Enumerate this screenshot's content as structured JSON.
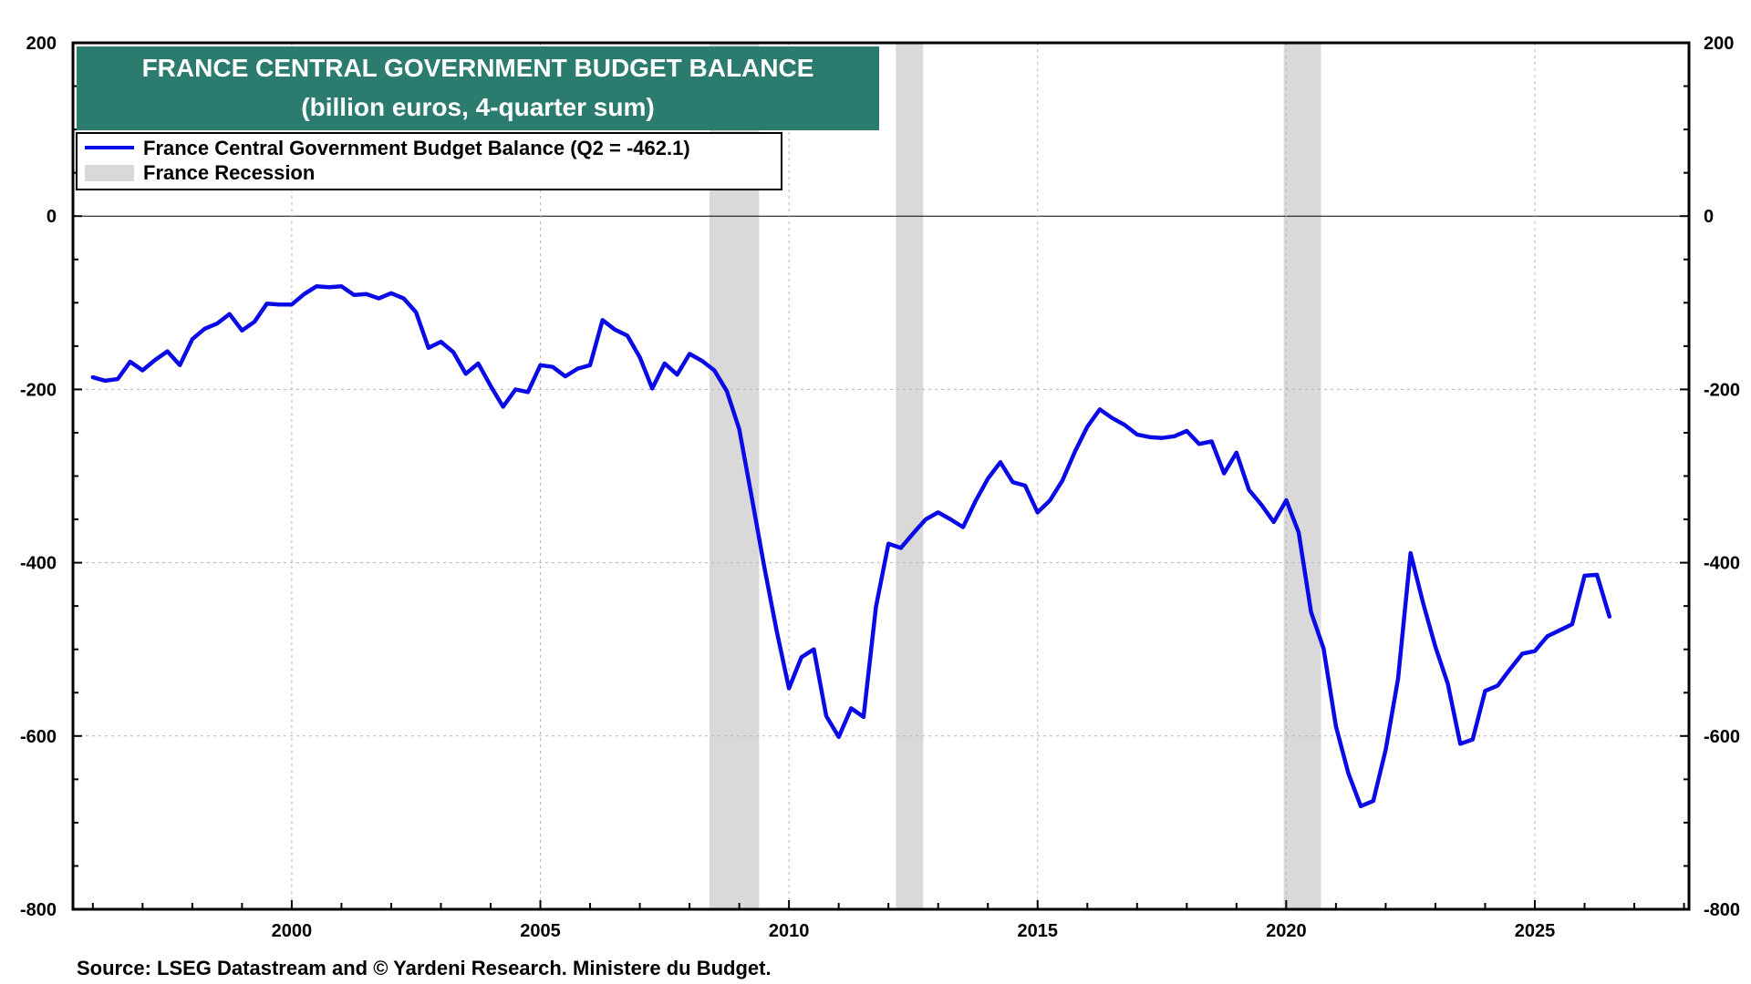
{
  "chart_data": {
    "type": "line",
    "title": "FRANCE CENTRAL GOVERNMENT BUDGET BALANCE",
    "subtitle": "(billion euros, 4-quarter sum)",
    "source": "Source: LSEG Datastream and © Yardeni Research. Ministere du Budget.",
    "xlim": [
      1995.6,
      2028.1
    ],
    "ylim": [
      -800,
      200
    ],
    "x_ticks": [
      2000,
      2005,
      2010,
      2015,
      2020,
      2025
    ],
    "x_tick_labels": [
      "2000",
      "2005",
      "2010",
      "2015",
      "2020",
      "2025"
    ],
    "y_ticks": [
      200,
      0,
      -200,
      -400,
      -600,
      -800
    ],
    "y_tick_labels": [
      "200",
      "0",
      "-200",
      "-400",
      "-600",
      "-800"
    ],
    "grid": true,
    "zero_line": true,
    "legend": {
      "placement": "top-left",
      "entries": [
        {
          "label": "France Central Government Budget Balance (Q2 = -462.1)",
          "color": "#0a0ae6",
          "kind": "line"
        },
        {
          "label": "France Recession",
          "color": "#d9d9d9",
          "kind": "area"
        }
      ]
    },
    "recessions": [
      [
        2008.4,
        2009.4
      ],
      [
        2012.15,
        2012.7
      ],
      [
        2019.95,
        2020.7
      ]
    ],
    "series": [
      {
        "name": "France Central Government Budget Balance (Q2 = -462.1)",
        "color": "#0a0ae6",
        "points": [
          [
            1996.0,
            -186
          ],
          [
            1996.25,
            -190
          ],
          [
            1996.5,
            -188
          ],
          [
            1996.75,
            -168
          ],
          [
            1997.0,
            -178
          ],
          [
            1997.25,
            -166
          ],
          [
            1997.5,
            -156
          ],
          [
            1997.75,
            -172
          ],
          [
            1998.0,
            -142
          ],
          [
            1998.25,
            -130
          ],
          [
            1998.5,
            -124
          ],
          [
            1998.75,
            -113
          ],
          [
            1999.0,
            -132
          ],
          [
            1999.25,
            -122
          ],
          [
            1999.5,
            -101
          ],
          [
            1999.75,
            -102
          ],
          [
            2000.0,
            -102
          ],
          [
            2000.25,
            -90
          ],
          [
            2000.5,
            -81
          ],
          [
            2000.75,
            -82
          ],
          [
            2001.0,
            -81
          ],
          [
            2001.25,
            -91
          ],
          [
            2001.5,
            -90
          ],
          [
            2001.75,
            -95
          ],
          [
            2002.0,
            -89
          ],
          [
            2002.25,
            -95
          ],
          [
            2002.5,
            -111
          ],
          [
            2002.75,
            -152
          ],
          [
            2003.0,
            -145
          ],
          [
            2003.25,
            -157
          ],
          [
            2003.5,
            -182
          ],
          [
            2003.75,
            -170
          ],
          [
            2004.0,
            -196
          ],
          [
            2004.25,
            -220
          ],
          [
            2004.5,
            -200
          ],
          [
            2004.75,
            -203
          ],
          [
            2005.0,
            -172
          ],
          [
            2005.25,
            -174
          ],
          [
            2005.5,
            -185
          ],
          [
            2005.75,
            -176
          ],
          [
            2006.0,
            -172
          ],
          [
            2006.25,
            -120
          ],
          [
            2006.5,
            -131
          ],
          [
            2006.75,
            -138
          ],
          [
            2007.0,
            -163
          ],
          [
            2007.25,
            -199
          ],
          [
            2007.5,
            -170
          ],
          [
            2007.75,
            -183
          ],
          [
            2008.0,
            -159
          ],
          [
            2008.25,
            -167
          ],
          [
            2008.5,
            -178
          ],
          [
            2008.75,
            -202
          ],
          [
            2009.0,
            -246
          ],
          [
            2009.25,
            -324
          ],
          [
            2009.5,
            -404
          ],
          [
            2009.75,
            -478
          ],
          [
            2010.0,
            -545
          ],
          [
            2010.25,
            -509
          ],
          [
            2010.5,
            -500
          ],
          [
            2010.75,
            -577
          ],
          [
            2011.0,
            -601
          ],
          [
            2011.25,
            -568
          ],
          [
            2011.5,
            -578
          ],
          [
            2011.75,
            -451
          ],
          [
            2012.0,
            -378
          ],
          [
            2012.25,
            -383
          ],
          [
            2012.5,
            -366
          ],
          [
            2012.75,
            -350
          ],
          [
            2013.0,
            -342
          ],
          [
            2013.25,
            -350
          ],
          [
            2013.5,
            -359
          ],
          [
            2013.75,
            -329
          ],
          [
            2014.0,
            -303
          ],
          [
            2014.25,
            -284
          ],
          [
            2014.5,
            -307
          ],
          [
            2014.75,
            -311
          ],
          [
            2015.0,
            -342
          ],
          [
            2015.25,
            -328
          ],
          [
            2015.5,
            -305
          ],
          [
            2015.75,
            -272
          ],
          [
            2016.0,
            -243
          ],
          [
            2016.25,
            -223
          ],
          [
            2016.5,
            -233
          ],
          [
            2016.75,
            -241
          ],
          [
            2017.0,
            -252
          ],
          [
            2017.25,
            -255
          ],
          [
            2017.5,
            -256
          ],
          [
            2017.75,
            -254
          ],
          [
            2018.0,
            -248
          ],
          [
            2018.25,
            -263
          ],
          [
            2018.5,
            -260
          ],
          [
            2018.75,
            -297
          ],
          [
            2019.0,
            -273
          ],
          [
            2019.25,
            -316
          ],
          [
            2019.5,
            -333
          ],
          [
            2019.75,
            -353
          ],
          [
            2020.0,
            -328
          ],
          [
            2020.25,
            -365
          ],
          [
            2020.5,
            -457
          ],
          [
            2020.75,
            -499
          ],
          [
            2021.0,
            -589
          ],
          [
            2021.25,
            -643
          ],
          [
            2021.5,
            -681
          ],
          [
            2021.75,
            -675
          ],
          [
            2022.0,
            -616
          ],
          [
            2022.25,
            -534
          ],
          [
            2022.5,
            -389
          ],
          [
            2022.75,
            -446
          ],
          [
            2023.0,
            -497
          ],
          [
            2023.25,
            -540
          ],
          [
            2023.5,
            -609
          ],
          [
            2023.75,
            -604
          ],
          [
            2024.0,
            -548
          ],
          [
            2024.25,
            -542
          ],
          [
            2024.5,
            -523
          ],
          [
            2024.75,
            -505
          ],
          [
            2025.0,
            -502
          ],
          [
            2025.25,
            -485
          ],
          [
            2025.5,
            -478
          ],
          [
            2025.75,
            -471
          ],
          [
            2026.0,
            -415
          ],
          [
            2026.25,
            -414
          ],
          [
            2026.5,
            -462.1
          ]
        ]
      }
    ]
  }
}
